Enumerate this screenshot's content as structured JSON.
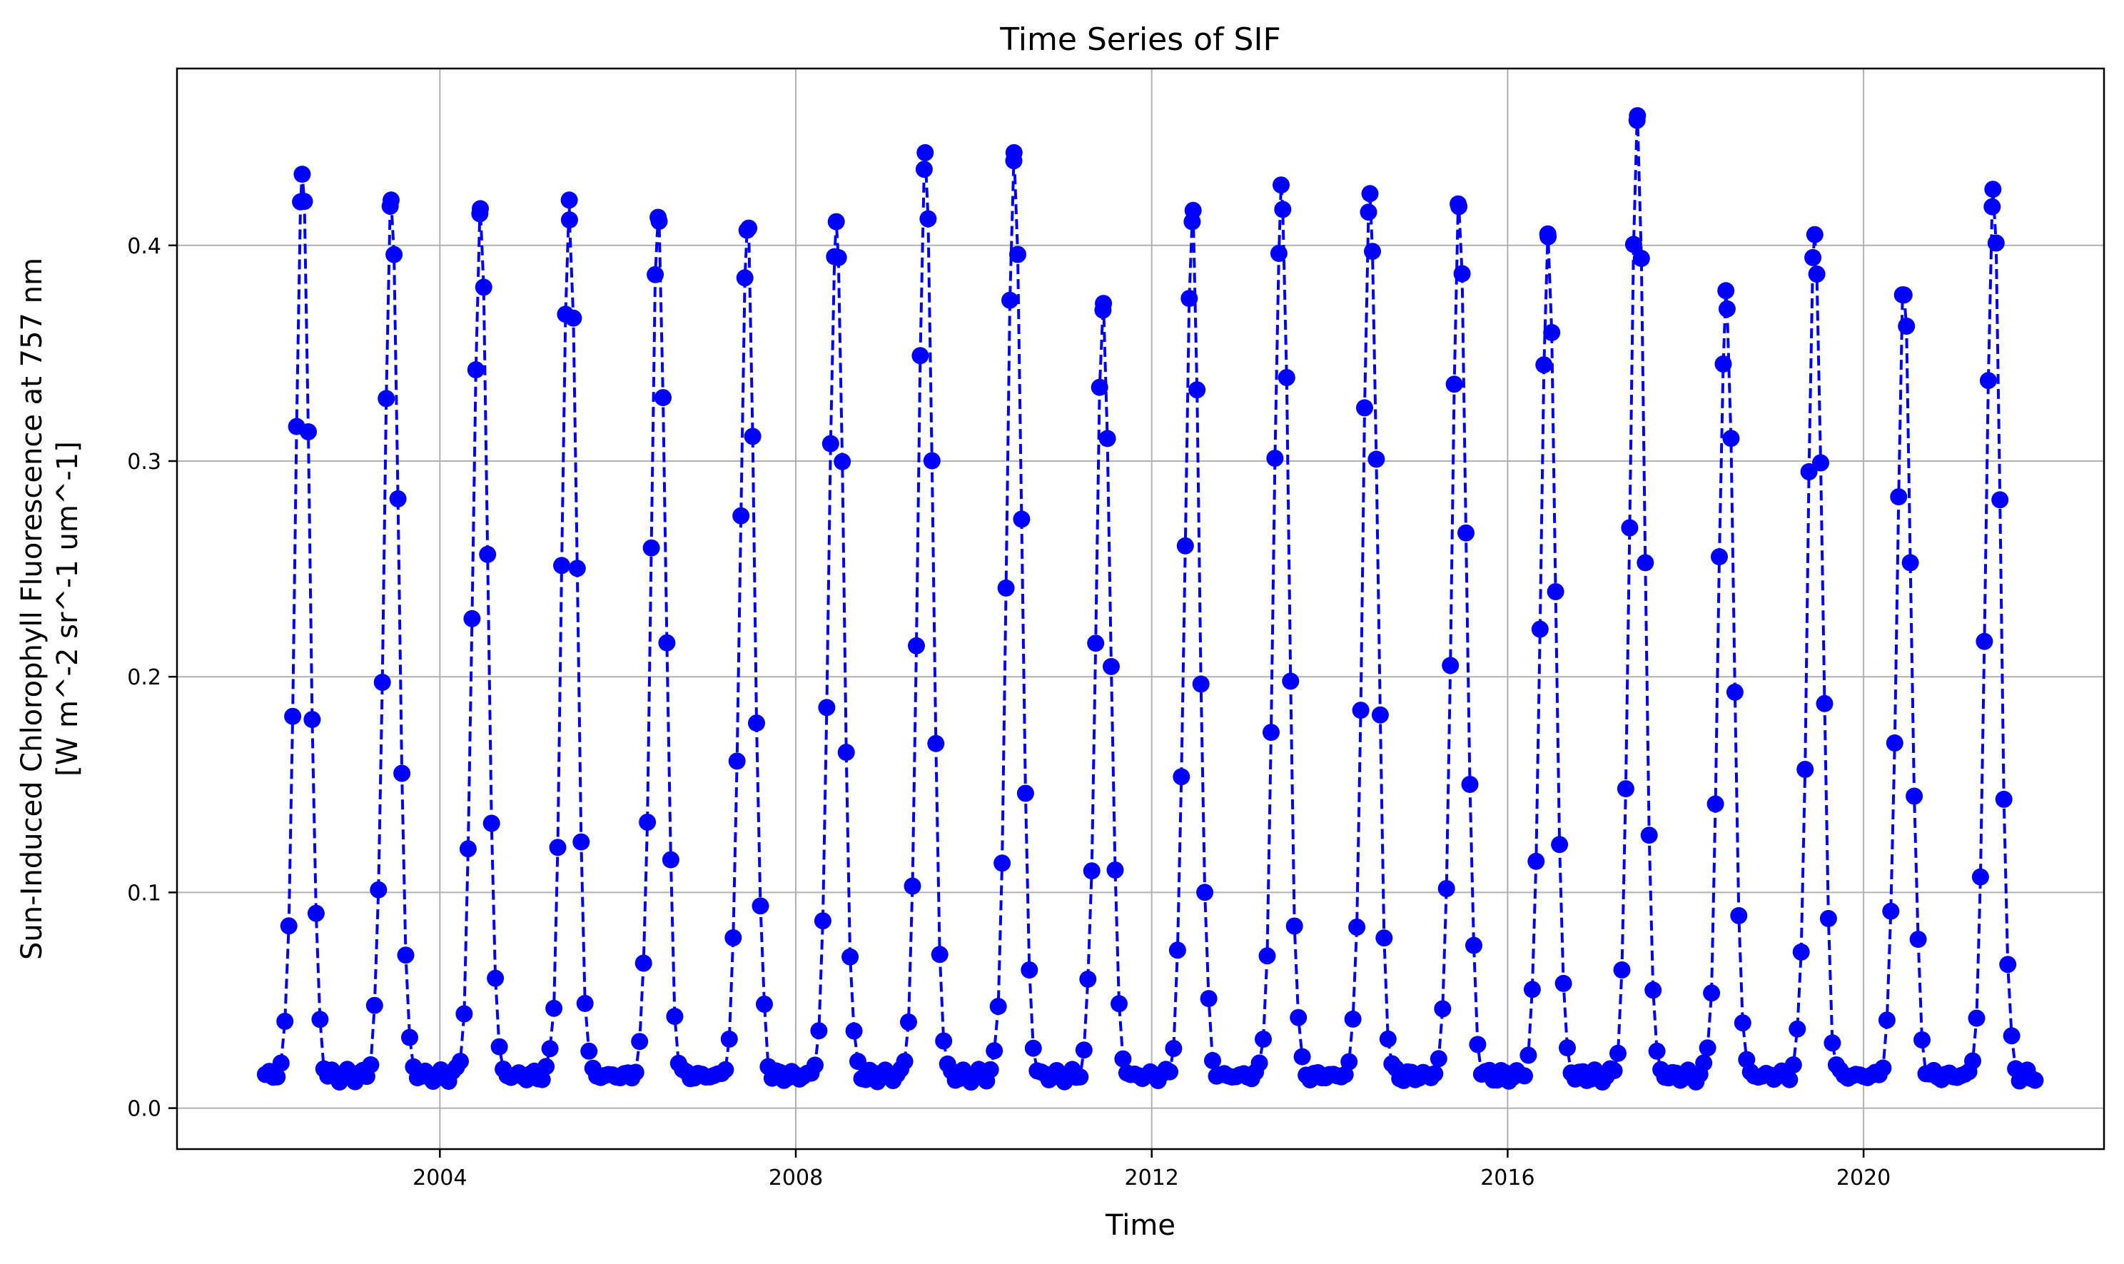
{
  "chart_data": {
    "type": "line",
    "title": "Time Series of SIF",
    "xlabel": "Time",
    "ylabel_line1": "Sun-Induced Chlorophyll Fluorescence at 757 nm",
    "ylabel_line2": "[W m^-2 sr^-1 um^-1]",
    "xlim": [
      "2001-01-17",
      "2022-09-14"
    ],
    "ylim": [
      -0.019,
      0.482
    ],
    "x_ticks": [
      {
        "date": "2004-01-01",
        "label": "2004"
      },
      {
        "date": "2008-01-01",
        "label": "2008"
      },
      {
        "date": "2012-01-01",
        "label": "2012"
      },
      {
        "date": "2016-01-01",
        "label": "2016"
      },
      {
        "date": "2020-01-01",
        "label": "2020"
      }
    ],
    "y_ticks": [
      {
        "value": 0.0,
        "label": "0.0"
      },
      {
        "value": 0.1,
        "label": "0.1"
      },
      {
        "value": 0.2,
        "label": "0.2"
      },
      {
        "value": 0.3,
        "label": "0.3"
      },
      {
        "value": 0.4,
        "label": "0.4"
      }
    ],
    "grid": true,
    "series": [
      {
        "color": "#0000ff",
        "line_style": "dashed",
        "marker": "circle",
        "annual_peaks": [
          {
            "date": "2002-06-15",
            "value": 0.433
          },
          {
            "date": "2003-06-15",
            "value": 0.421
          },
          {
            "date": "2004-06-15",
            "value": 0.417
          },
          {
            "date": "2005-06-15",
            "value": 0.421
          },
          {
            "date": "2006-06-15",
            "value": 0.413
          },
          {
            "date": "2007-06-15",
            "value": 0.407
          },
          {
            "date": "2008-06-15",
            "value": 0.411
          },
          {
            "date": "2009-06-15",
            "value": 0.443
          },
          {
            "date": "2010-06-15",
            "value": 0.443
          },
          {
            "date": "2011-06-15",
            "value": 0.37
          },
          {
            "date": "2012-06-15",
            "value": 0.411
          },
          {
            "date": "2013-06-15",
            "value": 0.428
          },
          {
            "date": "2014-06-15",
            "value": 0.424
          },
          {
            "date": "2015-06-15",
            "value": 0.418
          },
          {
            "date": "2016-06-15",
            "value": 0.404
          },
          {
            "date": "2017-06-15",
            "value": 0.458
          },
          {
            "date": "2018-06-15",
            "value": 0.379
          },
          {
            "date": "2019-06-15",
            "value": 0.405
          },
          {
            "date": "2020-06-15",
            "value": 0.377
          },
          {
            "date": "2021-06-15",
            "value": 0.426
          }
        ],
        "annual_minimum_approx": 0.015,
        "data_start": "2002-01-15",
        "data_end": "2021-12-15"
      }
    ]
  }
}
